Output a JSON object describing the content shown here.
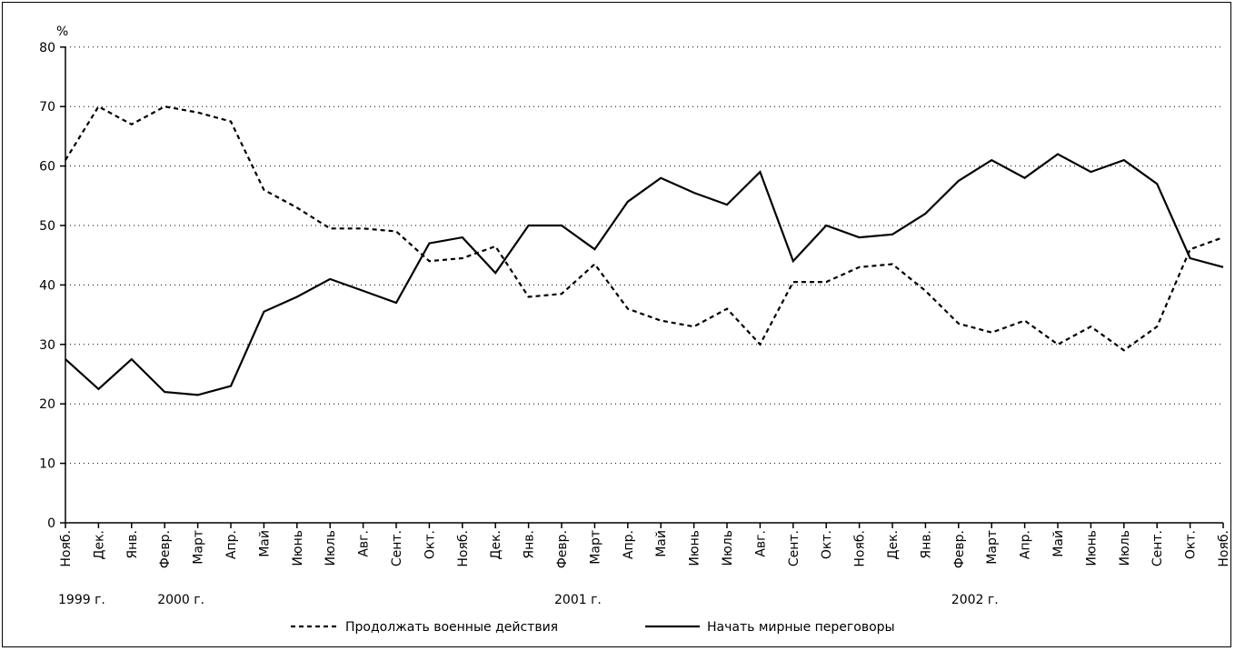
{
  "chart_data": {
    "type": "line",
    "yunit": "%",
    "ylim": [
      0,
      80
    ],
    "yticks": [
      0,
      10,
      20,
      30,
      40,
      50,
      60,
      70,
      80
    ],
    "grid": true,
    "legend_position": "bottom",
    "categories": [
      "Нояб.",
      "Дек.",
      "Янв.",
      "Февр.",
      "Март",
      "Апр.",
      "Май",
      "Июнь",
      "Июль",
      "Авг.",
      "Сент.",
      "Окт.",
      "Нояб.",
      "Дек.",
      "Янв.",
      "Февр.",
      "Март",
      "Апр.",
      "Май",
      "Июнь",
      "Июль",
      "Авг.",
      "Сент.",
      "Окт.",
      "Нояб.",
      "Дек.",
      "Янв.",
      "Февр.",
      "Март",
      "Апр.",
      "Май",
      "Июнь",
      "Июль",
      "Сент.",
      "Окт.",
      "Нояб."
    ],
    "year_labels": [
      {
        "text": "1999 г.",
        "index": 0
      },
      {
        "text": "2000 г.",
        "index": 3
      },
      {
        "text": "2001 г.",
        "index": 15
      },
      {
        "text": "2002 г.",
        "index": 27
      }
    ],
    "series": [
      {
        "name": "Продолжать военные действия",
        "style": "dashed",
        "values": [
          61,
          70,
          67,
          70,
          69,
          67.5,
          56,
          53,
          49.5,
          49.5,
          49,
          44,
          44.5,
          46.5,
          38,
          38.5,
          43.5,
          36,
          34,
          33,
          36,
          30,
          40.5,
          40.5,
          43,
          43.5,
          39,
          33.5,
          32,
          34,
          30,
          33,
          29,
          33,
          46,
          48
        ]
      },
      {
        "name": "Начать мирные переговоры",
        "style": "solid",
        "values": [
          27.5,
          22.5,
          27.5,
          22,
          21.5,
          23,
          35.5,
          38,
          41,
          39,
          37,
          47,
          48,
          42,
          50,
          50,
          46,
          54,
          58,
          55.5,
          53.5,
          59,
          44,
          50,
          48,
          48.5,
          52,
          57.5,
          61,
          58,
          62,
          59,
          61,
          57,
          44.5,
          43
        ]
      }
    ]
  }
}
